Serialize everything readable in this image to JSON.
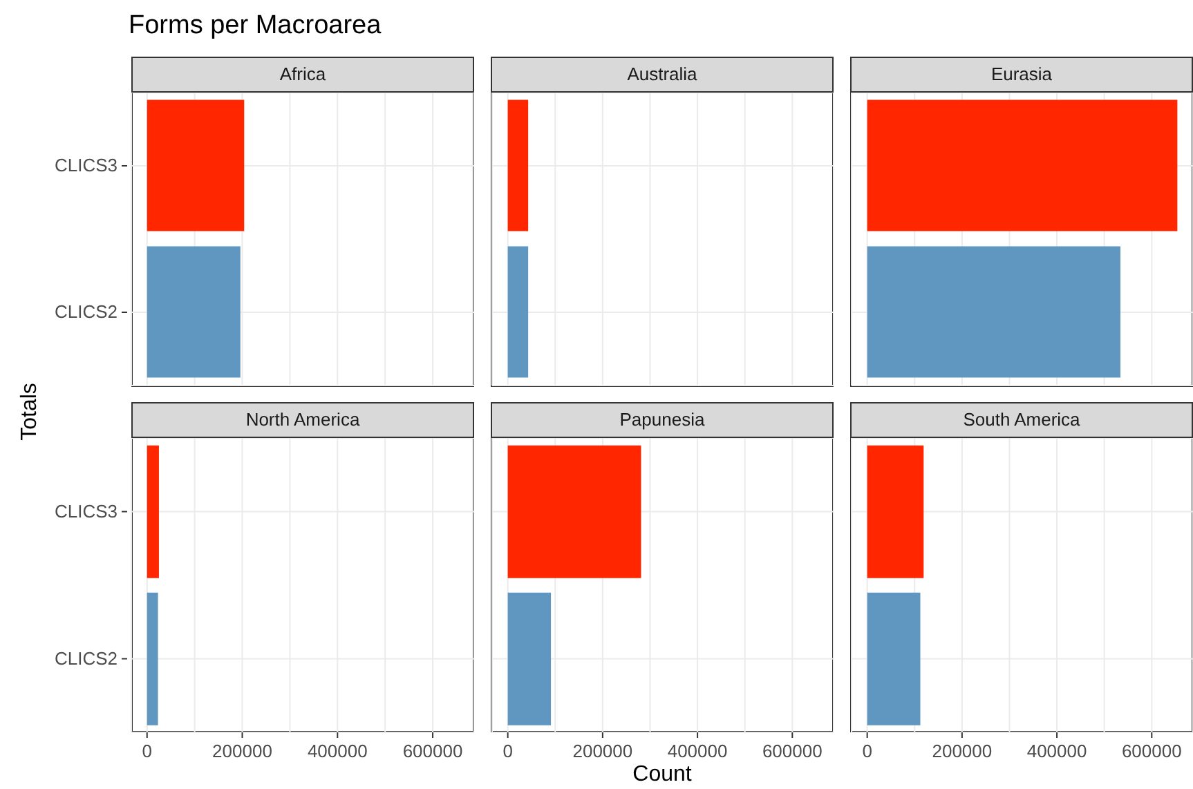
{
  "chart_data": [
    {
      "type": "bar",
      "orientation": "horizontal",
      "title": "Africa",
      "annotations": [
        "Forms per Macroarea"
      ],
      "ylabel": "Totals",
      "categories": [
        "CLICS3",
        "CLICS2"
      ],
      "values": [
        204000,
        196000
      ],
      "colors": [
        "#ff2600",
        "#5f97c1"
      ],
      "xlim": [
        -33000,
        687000
      ],
      "xticks": [
        0,
        {
          "value": 100000,
          "label": null
        },
        200000,
        {
          "value": 300000,
          "label": null
        },
        400000,
        {
          "value": 500000,
          "label": null
        },
        600000
      ],
      "grid": true,
      "tick_labels": "y"
    },
    {
      "type": "bar",
      "orientation": "horizontal",
      "title": "Australia",
      "categories": [
        null,
        null
      ],
      "values": [
        43000,
        43000
      ],
      "colors": [
        "#ff2600",
        "#5f97c1"
      ],
      "xlim": [
        -33000,
        687000
      ],
      "xticks": [
        0,
        {
          "value": 100000,
          "label": null
        },
        200000,
        {
          "value": 300000,
          "label": null
        },
        400000,
        {
          "value": 500000,
          "label": null
        },
        600000
      ],
      "grid": true,
      "tick_labels": false
    },
    {
      "type": "bar",
      "orientation": "horizontal",
      "title": "Eurasia",
      "categories": [
        null,
        null
      ],
      "values": [
        654000,
        534000
      ],
      "colors": [
        "#ff2600",
        "#5f97c1"
      ],
      "xlim": [
        -33000,
        687000
      ],
      "xticks": [
        0,
        {
          "value": 100000,
          "label": null
        },
        200000,
        {
          "value": 300000,
          "label": null
        },
        400000,
        {
          "value": 500000,
          "label": null
        },
        600000
      ],
      "grid": true,
      "tick_labels": false
    },
    {
      "type": "bar",
      "orientation": "horizontal",
      "title": "North America",
      "categories": [
        "CLICS3",
        "CLICS2"
      ],
      "values": [
        25000,
        23000
      ],
      "colors": [
        "#ff2600",
        "#5f97c1"
      ],
      "xlim": [
        -33000,
        687000
      ],
      "xticks": [
        0,
        {
          "value": 100000,
          "label": null
        },
        200000,
        {
          "value": 300000,
          "label": null
        },
        400000,
        {
          "value": 500000,
          "label": null
        },
        600000
      ],
      "grid": true
    },
    {
      "type": "bar",
      "orientation": "horizontal",
      "title": "Papunesia",
      "xlabel": "Count",
      "categories": [
        null,
        null
      ],
      "values": [
        281000,
        91000
      ],
      "colors": [
        "#ff2600",
        "#5f97c1"
      ],
      "xlim": [
        -33000,
        687000
      ],
      "xticks": [
        0,
        {
          "value": 100000,
          "label": null
        },
        200000,
        {
          "value": 300000,
          "label": null
        },
        400000,
        {
          "value": 500000,
          "label": null
        },
        600000
      ],
      "grid": true,
      "tick_labels": "x"
    },
    {
      "type": "bar",
      "orientation": "horizontal",
      "title": "South America",
      "categories": [
        null,
        null
      ],
      "values": [
        119000,
        112000
      ],
      "colors": [
        "#ff2600",
        "#5f97c1"
      ],
      "xlim": [
        -33000,
        687000
      ],
      "xticks": [
        0,
        {
          "value": 100000,
          "label": null
        },
        200000,
        {
          "value": 300000,
          "label": null
        },
        400000,
        {
          "value": 500000,
          "label": null
        },
        600000
      ],
      "grid": true,
      "tick_labels": "x"
    }
  ]
}
